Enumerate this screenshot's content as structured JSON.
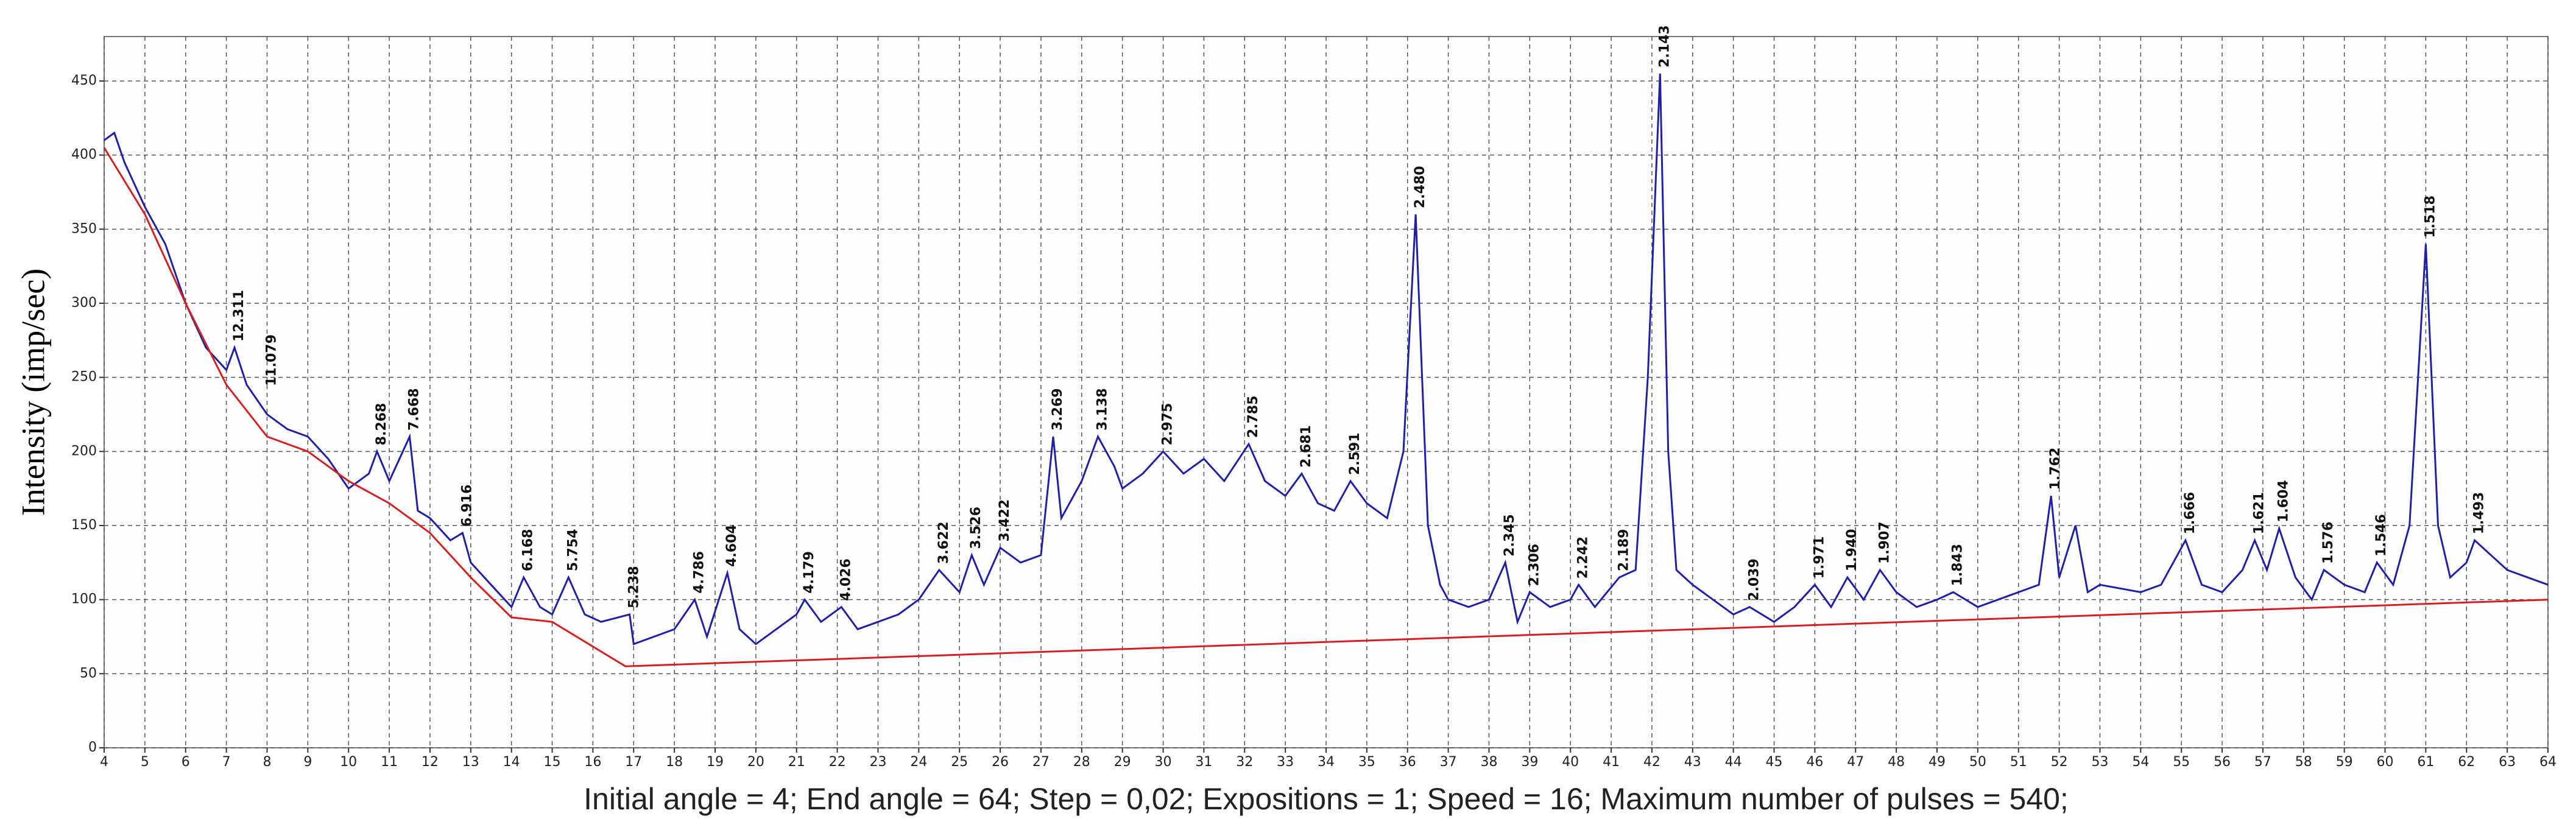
{
  "chart_data": {
    "type": "line",
    "ylabel": "Intensity (imp/sec)",
    "caption": "Initial angle = 4; End angle = 64; Step = 0,02; Expositions = 1; Speed = 16; Maximum number of pulses = 540;",
    "xlim": [
      4,
      64
    ],
    "ylim": [
      0,
      480
    ],
    "xticks": [
      4,
      5,
      6,
      7,
      8,
      9,
      10,
      11,
      12,
      13,
      14,
      15,
      16,
      17,
      18,
      19,
      20,
      21,
      22,
      23,
      24,
      25,
      26,
      27,
      28,
      29,
      30,
      31,
      32,
      33,
      34,
      35,
      36,
      37,
      38,
      39,
      40,
      41,
      42,
      43,
      44,
      45,
      46,
      47,
      48,
      49,
      50,
      51,
      52,
      53,
      54,
      55,
      56,
      57,
      58,
      59,
      60,
      61,
      62,
      63,
      64
    ],
    "yticks": [
      0,
      50,
      100,
      150,
      200,
      250,
      300,
      350,
      400,
      450
    ],
    "grid": true,
    "series": [
      {
        "color": "#1f1fa8",
        "x": [
          4,
          4.25,
          4.5,
          5,
          5.5,
          6,
          6.5,
          7,
          7.2,
          7.5,
          8,
          8.5,
          9,
          9.5,
          10,
          10.5,
          10.7,
          11,
          11.5,
          11.7,
          12,
          12.5,
          12.8,
          13,
          13.5,
          14,
          14.3,
          14.7,
          15,
          15.4,
          15.8,
          16.2,
          16.9,
          17,
          17.5,
          18,
          18.5,
          18.8,
          19.3,
          19.6,
          20,
          20.5,
          21,
          21.2,
          21.6,
          22.1,
          22.5,
          23,
          23.5,
          24,
          24.5,
          25,
          25.3,
          25.6,
          26,
          26.5,
          27,
          27.3,
          27.5,
          28,
          28.4,
          28.8,
          29,
          29.5,
          30,
          30.5,
          31,
          31.5,
          32.1,
          32.5,
          33,
          33.4,
          33.8,
          34.2,
          34.6,
          35,
          35.5,
          35.9,
          36.2,
          36.5,
          36.8,
          37,
          37.5,
          38,
          38.4,
          38.7,
          39,
          39.5,
          40,
          40.2,
          40.6,
          41.2,
          41.6,
          41.9,
          42.2,
          42.4,
          42.6,
          43,
          43.5,
          44,
          44.4,
          45,
          45.5,
          46,
          46.4,
          46.8,
          47.2,
          47.6,
          48,
          48.5,
          49,
          49.4,
          50,
          50.5,
          51,
          51.5,
          51.8,
          52,
          52.4,
          52.7,
          53,
          54,
          54.5,
          55.1,
          55.5,
          56,
          56.5,
          56.8,
          57.1,
          57.4,
          57.8,
          58.2,
          58.5,
          59,
          59.5,
          59.8,
          60.2,
          60.6,
          61,
          61.3,
          61.6,
          62,
          62.2,
          62.6,
          63,
          63.5,
          64
        ],
        "values": [
          410,
          415,
          395,
          365,
          340,
          300,
          270,
          255,
          270,
          245,
          225,
          215,
          210,
          195,
          175,
          185,
          200,
          180,
          210,
          160,
          155,
          140,
          145,
          125,
          110,
          95,
          115,
          95,
          90,
          115,
          90,
          85,
          90,
          70,
          75,
          80,
          100,
          75,
          118,
          80,
          70,
          80,
          90,
          100,
          85,
          95,
          80,
          85,
          90,
          100,
          120,
          105,
          130,
          110,
          135,
          125,
          130,
          210,
          155,
          180,
          210,
          190,
          175,
          185,
          200,
          185,
          195,
          180,
          205,
          180,
          170,
          185,
          165,
          160,
          180,
          165,
          155,
          200,
          360,
          150,
          110,
          100,
          95,
          100,
          125,
          85,
          105,
          95,
          100,
          110,
          95,
          115,
          120,
          250,
          455,
          200,
          120,
          110,
          100,
          90,
          95,
          85,
          95,
          110,
          95,
          115,
          100,
          120,
          105,
          95,
          100,
          105,
          95,
          100,
          105,
          110,
          170,
          115,
          150,
          105,
          110,
          105,
          110,
          140,
          110,
          105,
          120,
          140,
          120,
          148,
          115,
          100,
          120,
          110,
          105,
          125,
          110,
          150,
          340,
          150,
          115,
          125,
          140,
          130,
          120,
          115,
          110
        ]
      },
      {
        "color": "#d42020",
        "x": [
          4,
          5,
          6,
          7,
          8,
          9,
          10,
          11,
          12,
          13,
          14,
          15,
          16.8,
          64
        ],
        "values": [
          405,
          360,
          300,
          245,
          210,
          200,
          180,
          165,
          145,
          115,
          88,
          85,
          55,
          100
        ]
      }
    ],
    "annotations": [
      {
        "text": "12.311",
        "x": 7.2,
        "y": 270
      },
      {
        "text": "11.079",
        "x": 8.0,
        "y": 240
      },
      {
        "text": "8.268",
        "x": 10.7,
        "y": 200
      },
      {
        "text": "7.668",
        "x": 11.5,
        "y": 210
      },
      {
        "text": "6.916",
        "x": 12.8,
        "y": 145
      },
      {
        "text": "6.168",
        "x": 14.3,
        "y": 115
      },
      {
        "text": "5.754",
        "x": 15.4,
        "y": 115
      },
      {
        "text": "5.238",
        "x": 16.9,
        "y": 90
      },
      {
        "text": "4.786",
        "x": 18.5,
        "y": 100
      },
      {
        "text": "4.604",
        "x": 19.3,
        "y": 118
      },
      {
        "text": "4.179",
        "x": 21.2,
        "y": 100
      },
      {
        "text": "4.026",
        "x": 22.1,
        "y": 95
      },
      {
        "text": "3.622",
        "x": 24.5,
        "y": 120
      },
      {
        "text": "3.526",
        "x": 25.3,
        "y": 130
      },
      {
        "text": "3.422",
        "x": 26.0,
        "y": 135
      },
      {
        "text": "3.269",
        "x": 27.3,
        "y": 210
      },
      {
        "text": "3.138",
        "x": 28.4,
        "y": 210
      },
      {
        "text": "2.975",
        "x": 30.0,
        "y": 200
      },
      {
        "text": "2.785",
        "x": 32.1,
        "y": 205
      },
      {
        "text": "2.681",
        "x": 33.4,
        "y": 185
      },
      {
        "text": "2.591",
        "x": 34.6,
        "y": 180
      },
      {
        "text": "2.480",
        "x": 36.2,
        "y": 360
      },
      {
        "text": "2.345",
        "x": 38.4,
        "y": 125
      },
      {
        "text": "2.306",
        "x": 39.0,
        "y": 105
      },
      {
        "text": "2.242",
        "x": 40.2,
        "y": 110
      },
      {
        "text": "2.189",
        "x": 41.2,
        "y": 115
      },
      {
        "text": "2.143",
        "x": 42.2,
        "y": 455
      },
      {
        "text": "2.039",
        "x": 44.4,
        "y": 95
      },
      {
        "text": "1.971",
        "x": 46.0,
        "y": 110
      },
      {
        "text": "1.940",
        "x": 46.8,
        "y": 115
      },
      {
        "text": "1.907",
        "x": 47.6,
        "y": 120
      },
      {
        "text": "1.843",
        "x": 49.4,
        "y": 105
      },
      {
        "text": "1.762",
        "x": 51.8,
        "y": 170
      },
      {
        "text": "1.666",
        "x": 55.1,
        "y": 140
      },
      {
        "text": "1.621",
        "x": 56.8,
        "y": 140
      },
      {
        "text": "1.604",
        "x": 57.4,
        "y": 148
      },
      {
        "text": "1.576",
        "x": 58.5,
        "y": 120
      },
      {
        "text": "1.546",
        "x": 59.8,
        "y": 125
      },
      {
        "text": "1.518",
        "x": 61.0,
        "y": 340
      },
      {
        "text": "1.493",
        "x": 62.2,
        "y": 140
      }
    ]
  }
}
